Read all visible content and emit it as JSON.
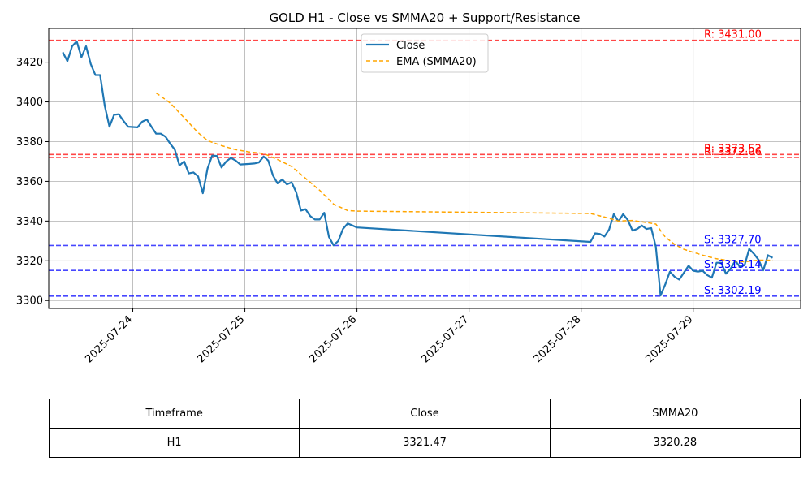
{
  "chart_data": {
    "type": "line",
    "title": "GOLD H1 - Close vs SMMA20 + Support/Resistance",
    "xlabel": "",
    "ylabel": "",
    "xlim": [
      "2025-07-23 06:00",
      "2025-07-29 23:00"
    ],
    "ylim": [
      3296,
      3437
    ],
    "x_ticks": [
      "2025-07-24",
      "2025-07-25",
      "2025-07-26",
      "2025-07-27",
      "2025-07-28",
      "2025-07-29"
    ],
    "y_ticks": [
      3300,
      3320,
      3340,
      3360,
      3380,
      3400,
      3420
    ],
    "grid": true,
    "legend": {
      "placement": "top-center",
      "entries": [
        "Close",
        "EMA (SMMA20)"
      ]
    },
    "series": [
      {
        "name": "Close",
        "color": "#1f77b4",
        "style": "solid",
        "points": [
          [
            "2025-07-23 09:00",
            3425
          ],
          [
            "2025-07-23 10:00",
            3420.5
          ],
          [
            "2025-07-23 11:00",
            3428
          ],
          [
            "2025-07-23 12:00",
            3430.5
          ],
          [
            "2025-07-23 13:00",
            3422.5
          ],
          [
            "2025-07-23 14:00",
            3428
          ],
          [
            "2025-07-23 15:00",
            3419
          ],
          [
            "2025-07-23 16:00",
            3413.5
          ],
          [
            "2025-07-23 17:00",
            3413.5
          ],
          [
            "2025-07-23 18:00",
            3398
          ],
          [
            "2025-07-23 19:00",
            3387.5
          ],
          [
            "2025-07-23 20:00",
            3393.5
          ],
          [
            "2025-07-23 21:00",
            3393.8
          ],
          [
            "2025-07-23 22:00",
            3390.5
          ],
          [
            "2025-07-23 23:00",
            3387.5
          ],
          [
            "2025-07-24 01:00",
            3387.2
          ],
          [
            "2025-07-24 02:00",
            3390
          ],
          [
            "2025-07-24 03:00",
            3391.2
          ],
          [
            "2025-07-24 04:00",
            3387.5
          ],
          [
            "2025-07-24 05:00",
            3384
          ],
          [
            "2025-07-24 06:00",
            3384
          ],
          [
            "2025-07-24 07:00",
            3382.5
          ],
          [
            "2025-07-24 08:00",
            3379
          ],
          [
            "2025-07-24 09:00",
            3376
          ],
          [
            "2025-07-24 10:00",
            3368
          ],
          [
            "2025-07-24 11:00",
            3370
          ],
          [
            "2025-07-24 12:00",
            3364
          ],
          [
            "2025-07-24 13:00",
            3364.5
          ],
          [
            "2025-07-24 14:00",
            3362.5
          ],
          [
            "2025-07-24 15:00",
            3354
          ],
          [
            "2025-07-24 16:00",
            3366.5
          ],
          [
            "2025-07-24 17:00",
            3373
          ],
          [
            "2025-07-24 18:00",
            3372.8
          ],
          [
            "2025-07-24 19:00",
            3367
          ],
          [
            "2025-07-24 20:00",
            3370
          ],
          [
            "2025-07-24 21:00",
            3371.8
          ],
          [
            "2025-07-24 22:00",
            3370.5
          ],
          [
            "2025-07-24 23:00",
            3368.5
          ],
          [
            "2025-07-25 01:00",
            3368.8
          ],
          [
            "2025-07-25 02:00",
            3369
          ],
          [
            "2025-07-25 03:00",
            3369.5
          ],
          [
            "2025-07-25 04:00",
            3372.5
          ],
          [
            "2025-07-25 05:00",
            3370.5
          ],
          [
            "2025-07-25 06:00",
            3363
          ],
          [
            "2025-07-25 07:00",
            3359
          ],
          [
            "2025-07-25 08:00",
            3361
          ],
          [
            "2025-07-25 09:00",
            3358.5
          ],
          [
            "2025-07-25 10:00",
            3359.5
          ],
          [
            "2025-07-25 11:00",
            3354.5
          ],
          [
            "2025-07-25 12:00",
            3345.3
          ],
          [
            "2025-07-25 13:00",
            3346
          ],
          [
            "2025-07-25 14:00",
            3342.5
          ],
          [
            "2025-07-25 15:00",
            3340.8
          ],
          [
            "2025-07-25 16:00",
            3340.8
          ],
          [
            "2025-07-25 17:00",
            3344.2
          ],
          [
            "2025-07-25 18:00",
            3332
          ],
          [
            "2025-07-25 19:00",
            3327.8
          ],
          [
            "2025-07-25 20:00",
            3330
          ],
          [
            "2025-07-25 21:00",
            3336
          ],
          [
            "2025-07-25 22:00",
            3338.8
          ],
          [
            "2025-07-25 23:00",
            3337.8
          ],
          [
            "2025-07-26 00:00",
            3336.8
          ],
          [
            "2025-07-28 02:00",
            3329.5
          ],
          [
            "2025-07-28 03:00",
            3333.8
          ],
          [
            "2025-07-28 04:00",
            3333.5
          ],
          [
            "2025-07-28 05:00",
            3332.2
          ],
          [
            "2025-07-28 06:00",
            3335.8
          ],
          [
            "2025-07-28 07:00",
            3343.5
          ],
          [
            "2025-07-28 08:00",
            3339.8
          ],
          [
            "2025-07-28 09:00",
            3343.5
          ],
          [
            "2025-07-28 10:00",
            3340.5
          ],
          [
            "2025-07-28 11:00",
            3335.2
          ],
          [
            "2025-07-28 12:00",
            3336
          ],
          [
            "2025-07-28 13:00",
            3337.8
          ],
          [
            "2025-07-28 14:00",
            3336
          ],
          [
            "2025-07-28 15:00",
            3336.5
          ],
          [
            "2025-07-28 16:00",
            3327
          ],
          [
            "2025-07-28 17:00",
            3302.5
          ],
          [
            "2025-07-28 18:00",
            3308
          ],
          [
            "2025-07-28 19:00",
            3314.5
          ],
          [
            "2025-07-28 20:00",
            3312
          ],
          [
            "2025-07-28 21:00",
            3310.5
          ],
          [
            "2025-07-28 22:00",
            3314
          ],
          [
            "2025-07-28 23:00",
            3317.5
          ],
          [
            "2025-07-29 00:00",
            3315
          ],
          [
            "2025-07-29 01:00",
            3314.5
          ],
          [
            "2025-07-29 02:00",
            3315
          ],
          [
            "2025-07-29 03:00",
            3312.8
          ],
          [
            "2025-07-29 04:00",
            3311.5
          ],
          [
            "2025-07-29 05:00",
            3319
          ],
          [
            "2025-07-29 06:00",
            3319
          ],
          [
            "2025-07-29 07:00",
            3313.5
          ],
          [
            "2025-07-29 08:00",
            3316
          ],
          [
            "2025-07-29 09:00",
            3320
          ],
          [
            "2025-07-29 10:00",
            3317
          ],
          [
            "2025-07-29 11:00",
            3317.8
          ],
          [
            "2025-07-29 12:00",
            3326
          ],
          [
            "2025-07-29 13:00",
            3323.5
          ],
          [
            "2025-07-29 14:00",
            3320.5
          ],
          [
            "2025-07-29 15:00",
            3315.2
          ],
          [
            "2025-07-29 16:00",
            3322.8
          ],
          [
            "2025-07-29 17:00",
            3321.47
          ]
        ]
      },
      {
        "name": "EMA (SMMA20)",
        "color": "#ffa500",
        "style": "dashed",
        "points": [
          [
            "2025-07-24 05:00",
            3404.5
          ],
          [
            "2025-07-24 08:00",
            3399.5
          ],
          [
            "2025-07-24 11:00",
            3392
          ],
          [
            "2025-07-24 14:00",
            3384.5
          ],
          [
            "2025-07-24 16:00",
            3380.5
          ],
          [
            "2025-07-24 19:00",
            3378
          ],
          [
            "2025-07-24 22:00",
            3376
          ],
          [
            "2025-07-25 01:00",
            3374.8
          ],
          [
            "2025-07-25 04:00",
            3374
          ],
          [
            "2025-07-25 07:00",
            3371
          ],
          [
            "2025-07-25 10:00",
            3367.5
          ],
          [
            "2025-07-25 13:00",
            3361.5
          ],
          [
            "2025-07-25 16:00",
            3355.5
          ],
          [
            "2025-07-25 19:00",
            3348.5
          ],
          [
            "2025-07-25 22:00",
            3345.3
          ],
          [
            "2025-07-26 00:00",
            3345
          ],
          [
            "2025-07-28 02:00",
            3343.8
          ],
          [
            "2025-07-28 05:00",
            3342
          ],
          [
            "2025-07-28 08:00",
            3340
          ],
          [
            "2025-07-28 11:00",
            3340.3
          ],
          [
            "2025-07-28 14:00",
            3339.3
          ],
          [
            "2025-07-28 16:00",
            3338.5
          ],
          [
            "2025-07-28 18:00",
            3332
          ],
          [
            "2025-07-28 20:00",
            3328.3
          ],
          [
            "2025-07-28 22:00",
            3325.8
          ],
          [
            "2025-07-29 00:00",
            3324.3
          ],
          [
            "2025-07-29 02:00",
            3322.8
          ],
          [
            "2025-07-29 05:00",
            3321
          ],
          [
            "2025-07-29 08:00",
            3320
          ],
          [
            "2025-07-29 11:00",
            3319.5
          ],
          [
            "2025-07-29 14:00",
            3320.3
          ],
          [
            "2025-07-29 17:00",
            3320.28
          ]
        ]
      }
    ],
    "levels": [
      {
        "kind": "resistance",
        "label": "R: 3431.00",
        "value": 3431.0,
        "color": "#ff0000"
      },
      {
        "kind": "resistance",
        "label": "R: 3373.52",
        "value": 3373.52,
        "color": "#ff0000"
      },
      {
        "kind": "resistance",
        "label": "R: 3372.06",
        "value": 3372.06,
        "color": "#ff0000"
      },
      {
        "kind": "support",
        "label": "S: 3327.70",
        "value": 3327.7,
        "color": "#0000ff"
      },
      {
        "kind": "support",
        "label": "S: 3315.14",
        "value": 3315.14,
        "color": "#0000ff"
      },
      {
        "kind": "support",
        "label": "S: 3302.19",
        "value": 3302.19,
        "color": "#0000ff"
      }
    ]
  },
  "table": {
    "headers": [
      "Timeframe",
      "Close",
      "SMMA20"
    ],
    "rows": [
      [
        "H1",
        "3321.47",
        "3320.28"
      ]
    ]
  }
}
